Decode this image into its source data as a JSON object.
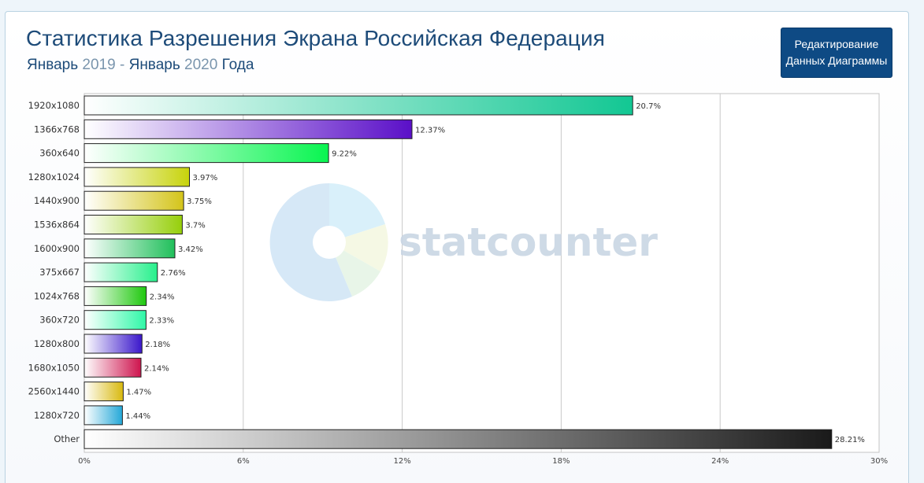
{
  "header": {
    "title": "Статистика Разрешения Экрана Российская Федерация",
    "subtitle": {
      "month_start": "Январь",
      "year_start": "2019",
      "separator": "-",
      "month_end": "Январь",
      "year_end": "2020",
      "suffix": "Года"
    },
    "edit_button": {
      "line1": "Редактирование",
      "line2": "Данных Диаграммы"
    }
  },
  "watermark": {
    "text": "statcounter",
    "icon": "statcounter-pie-logo"
  },
  "chart_data": {
    "type": "bar",
    "orientation": "horizontal",
    "categories": [
      "1920x1080",
      "1366x768",
      "360x640",
      "1280x1024",
      "1440x900",
      "1536x864",
      "1600x900",
      "375x667",
      "1024x768",
      "360x720",
      "1280x800",
      "1680x1050",
      "2560x1440",
      "1280x720",
      "Other"
    ],
    "values": [
      20.7,
      12.37,
      9.22,
      3.97,
      3.75,
      3.7,
      3.42,
      2.76,
      2.34,
      2.33,
      2.18,
      2.14,
      1.47,
      1.44,
      28.21
    ],
    "value_labels": [
      "20.7%",
      "12.37%",
      "9.22%",
      "3.97%",
      "3.75%",
      "3.7%",
      "3.42%",
      "2.76%",
      "2.34%",
      "2.33%",
      "2.18%",
      "2.14%",
      "1.47%",
      "1.44%",
      "28.21%"
    ],
    "colors": [
      "#12c793",
      "#5a0fc8",
      "#08f550",
      "#c7d30b",
      "#d4c41a",
      "#96cf0a",
      "#1fbf5a",
      "#27f08c",
      "#1fc80e",
      "#2ff8a7",
      "#3a17cb",
      "#ce144e",
      "#d8b90e",
      "#24a8d8",
      "#1a1a1a"
    ],
    "xlim": [
      0,
      30
    ],
    "x_ticks": [
      0,
      6,
      12,
      18,
      24,
      30
    ],
    "x_tick_labels": [
      "0%",
      "6%",
      "12%",
      "18%",
      "24%",
      "30%"
    ],
    "grid": "vertical",
    "title": "",
    "xlabel": "",
    "ylabel": ""
  }
}
